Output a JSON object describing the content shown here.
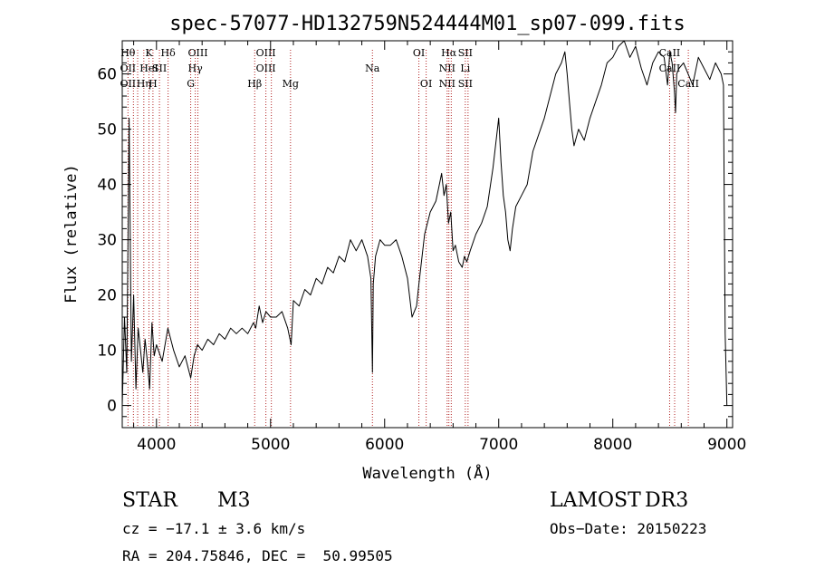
{
  "chart_data": {
    "type": "line",
    "title": "spec-57077-HD132759N524444M01_sp07-099.fits",
    "xlabel": "Wavelength (Å)",
    "ylabel": "Flux (relative)",
    "xlim": [
      3700,
      9050
    ],
    "ylim": [
      -4,
      66
    ],
    "xticks": [
      4000,
      5000,
      6000,
      7000,
      8000,
      9000
    ],
    "yticks": [
      0,
      10,
      20,
      30,
      40,
      50,
      60
    ],
    "grid": false,
    "series": [
      {
        "name": "spectrum",
        "x": [
          3700,
          3720,
          3740,
          3760,
          3780,
          3800,
          3820,
          3840,
          3860,
          3880,
          3900,
          3920,
          3940,
          3960,
          3980,
          4000,
          4050,
          4100,
          4150,
          4200,
          4250,
          4300,
          4330,
          4360,
          4400,
          4450,
          4500,
          4550,
          4600,
          4650,
          4700,
          4750,
          4800,
          4850,
          4870,
          4900,
          4930,
          4960,
          5000,
          5050,
          5100,
          5150,
          5180,
          5200,
          5250,
          5300,
          5350,
          5400,
          5450,
          5500,
          5550,
          5600,
          5650,
          5700,
          5750,
          5800,
          5850,
          5880,
          5893,
          5900,
          5920,
          5960,
          6000,
          6050,
          6100,
          6150,
          6200,
          6240,
          6280,
          6300,
          6350,
          6400,
          6450,
          6480,
          6500,
          6520,
          6540,
          6560,
          6580,
          6600,
          6620,
          6650,
          6680,
          6700,
          6720,
          6750,
          6800,
          6850,
          6900,
          6950,
          7000,
          7020,
          7040,
          7060,
          7080,
          7100,
          7120,
          7150,
          7200,
          7250,
          7300,
          7350,
          7400,
          7450,
          7500,
          7550,
          7580,
          7600,
          7620,
          7640,
          7660,
          7700,
          7750,
          7800,
          7850,
          7900,
          7950,
          8000,
          8050,
          8100,
          8150,
          8200,
          8250,
          8300,
          8350,
          8400,
          8450,
          8480,
          8500,
          8520,
          8540,
          8550,
          8560,
          8580,
          8620,
          8660,
          8700,
          8750,
          8800,
          8850,
          8900,
          8950,
          8970,
          8985,
          9000
        ],
        "y": [
          0,
          16,
          6,
          52,
          8,
          20,
          3,
          14,
          10,
          6,
          12,
          8,
          3,
          15,
          9,
          11,
          8,
          14,
          10,
          7,
          9,
          5,
          9,
          11,
          10,
          12,
          11,
          13,
          12,
          14,
          13,
          14,
          13,
          15,
          14,
          18,
          15,
          17,
          16,
          16,
          17,
          14,
          11,
          19,
          18,
          21,
          20,
          23,
          22,
          25,
          24,
          27,
          26,
          30,
          28,
          30,
          27,
          23,
          6,
          22,
          27,
          30,
          29,
          29,
          30,
          27,
          23,
          16,
          18,
          22,
          31,
          35,
          37,
          40,
          42,
          38,
          40,
          33,
          35,
          28,
          29,
          26,
          25,
          27,
          26,
          28,
          31,
          33,
          36,
          43,
          52,
          44,
          38,
          35,
          30,
          28,
          32,
          36,
          38,
          40,
          46,
          49,
          52,
          56,
          60,
          62,
          64,
          60,
          55,
          50,
          47,
          50,
          48,
          52,
          55,
          58,
          62,
          63,
          65,
          66,
          63,
          65,
          61,
          58,
          62,
          64,
          63,
          58,
          64,
          62,
          57,
          53,
          60,
          61,
          62,
          60,
          58,
          63,
          61,
          59,
          62,
          60,
          58,
          13,
          0
        ]
      }
    ],
    "lines": [
      {
        "x": 3750,
        "labels": [
          "Hθ",
          "OII",
          "OII"
        ]
      },
      {
        "x": 3798,
        "labels": [
          "",
          "",
          ""
        ]
      },
      {
        "x": 3835,
        "labels": [
          "",
          "",
          ""
        ]
      },
      {
        "x": 3889,
        "labels": [
          "",
          "",
          "Hη"
        ]
      },
      {
        "x": 3934,
        "labels": [
          "K",
          "HeI",
          ""
        ]
      },
      {
        "x": 3969,
        "labels": [
          "",
          "",
          "H"
        ]
      },
      {
        "x": 4026,
        "labels": [
          "",
          "SII",
          ""
        ]
      },
      {
        "x": 4102,
        "labels": [
          "Hδ",
          "",
          ""
        ]
      },
      {
        "x": 4300,
        "labels": [
          "",
          "",
          "G"
        ]
      },
      {
        "x": 4340,
        "labels": [
          "",
          "Hγ",
          ""
        ]
      },
      {
        "x": 4363,
        "labels": [
          "OIII",
          "",
          ""
        ]
      },
      {
        "x": 4861,
        "labels": [
          "",
          "",
          "Hβ"
        ]
      },
      {
        "x": 4959,
        "labels": [
          "OIII",
          "OIII",
          ""
        ]
      },
      {
        "x": 5007,
        "labels": [
          "",
          "",
          ""
        ]
      },
      {
        "x": 5175,
        "labels": [
          "",
          "",
          "Mg"
        ]
      },
      {
        "x": 5893,
        "labels": [
          "",
          "Na",
          ""
        ]
      },
      {
        "x": 6300,
        "labels": [
          "OI",
          "",
          ""
        ]
      },
      {
        "x": 6364,
        "labels": [
          "",
          "",
          "OI"
        ]
      },
      {
        "x": 6548,
        "labels": [
          "",
          "NII",
          "NII"
        ]
      },
      {
        "x": 6563,
        "labels": [
          "Hα",
          "",
          ""
        ]
      },
      {
        "x": 6584,
        "labels": [
          "",
          "",
          ""
        ]
      },
      {
        "x": 6707,
        "labels": [
          "SII",
          "Li",
          "SII"
        ]
      },
      {
        "x": 6731,
        "labels": [
          "",
          "",
          ""
        ]
      },
      {
        "x": 8498,
        "labels": [
          "CaII",
          "CaII",
          ""
        ]
      },
      {
        "x": 8542,
        "labels": [
          "",
          "",
          ""
        ]
      },
      {
        "x": 8662,
        "labels": [
          "",
          "",
          "CaII"
        ]
      }
    ]
  },
  "info": {
    "object_type": "STAR",
    "subclass": "M3",
    "survey": "LAMOST",
    "release": "DR3",
    "redshift": "cz = −17.1 ± 3.6 km/s",
    "obs_date": "Obs−Date: 20150223",
    "coords": "RA = 204.75846, DEC =  50.99505"
  },
  "colors": {
    "spectrum": "#000000",
    "line_marker": "#b22222",
    "axes": "#000000"
  }
}
